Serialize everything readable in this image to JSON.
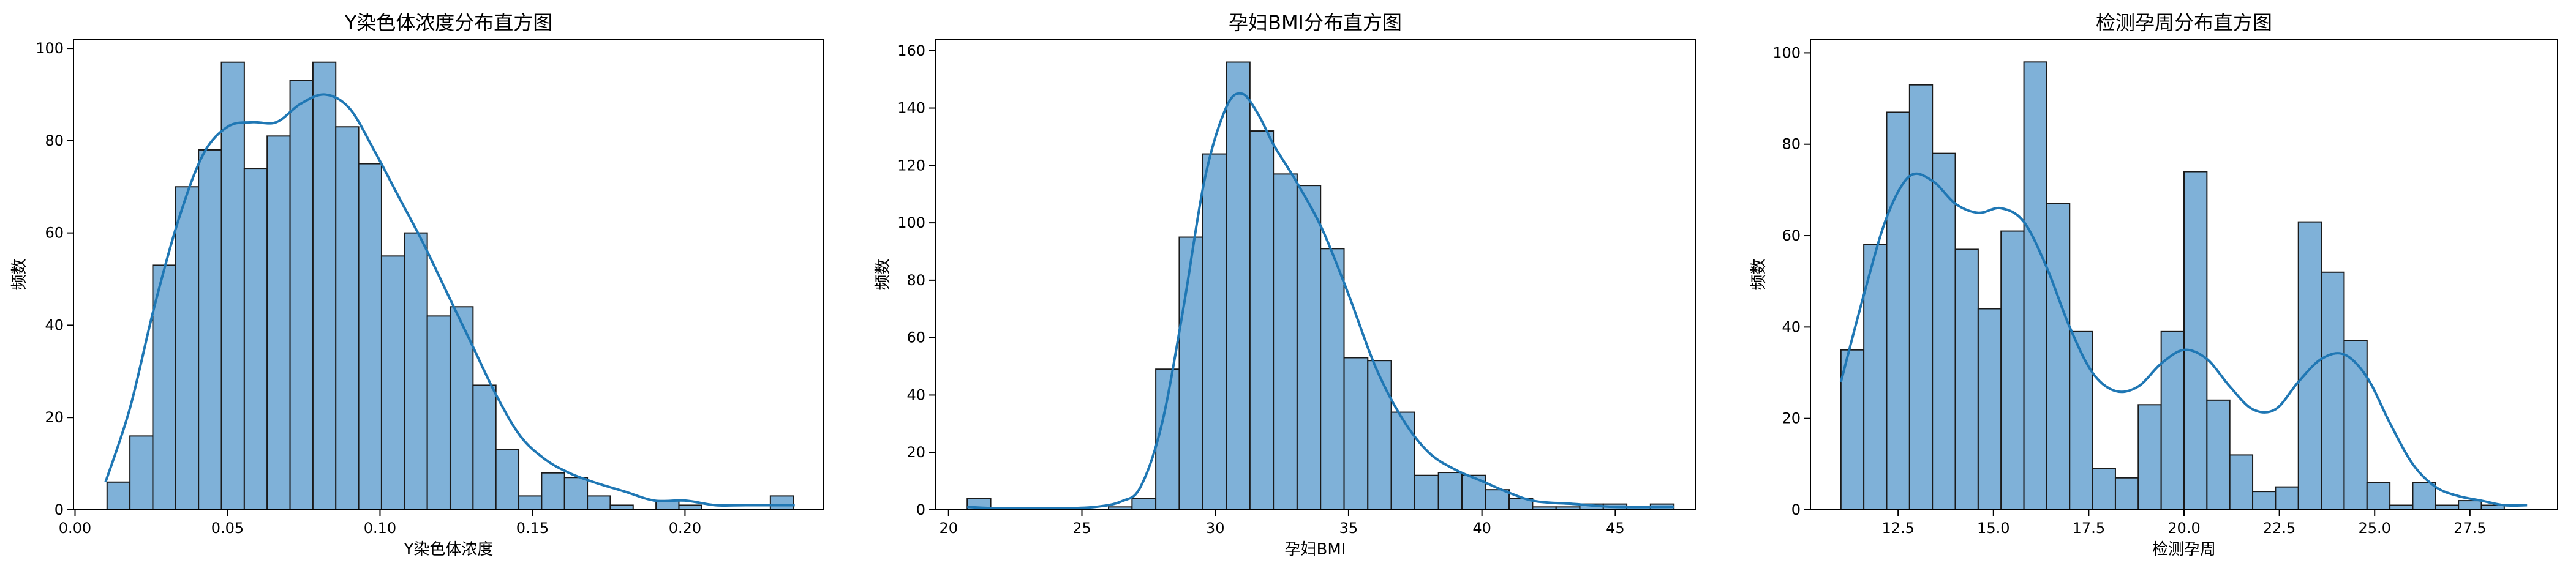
{
  "chart_data": [
    {
      "type": "bar",
      "title": "Y染色体浓度分布直方图",
      "xlabel": "Y染色体浓度",
      "ylabel": "频数",
      "bar_color": "#7fb1d8",
      "edge_color": "#1a1a1a",
      "kde_color": "#1f77b4",
      "xlim": [
        -0.0005,
        0.2455
      ],
      "ylim": [
        0,
        102
      ],
      "xticks": [
        0.0,
        0.05,
        0.1,
        0.15,
        0.2
      ],
      "xtick_labels": [
        "0.00",
        "0.05",
        "0.10",
        "0.15",
        "0.20"
      ],
      "yticks": [
        0,
        20,
        40,
        60,
        80,
        100
      ],
      "ytick_labels": [
        "0",
        "20",
        "40",
        "60",
        "80",
        "100"
      ],
      "bin_edges": [
        0.0105,
        0.018,
        0.0255,
        0.033,
        0.0405,
        0.048,
        0.0555,
        0.063,
        0.0705,
        0.078,
        0.0855,
        0.093,
        0.1005,
        0.108,
        0.1155,
        0.123,
        0.1305,
        0.138,
        0.1455,
        0.153,
        0.1605,
        0.168,
        0.1755,
        0.183,
        0.1905,
        0.198,
        0.2055,
        0.213,
        0.2205,
        0.228,
        0.2355
      ],
      "values": [
        6,
        16,
        53,
        70,
        78,
        97,
        74,
        81,
        93,
        97,
        83,
        75,
        55,
        60,
        42,
        44,
        27,
        13,
        3,
        8,
        7,
        3,
        1,
        0,
        2,
        1,
        0,
        0,
        0,
        3
      ],
      "kde": {
        "x": [
          0.01,
          0.018,
          0.026,
          0.034,
          0.042,
          0.05,
          0.058,
          0.066,
          0.074,
          0.082,
          0.09,
          0.098,
          0.106,
          0.114,
          0.122,
          0.13,
          0.138,
          0.146,
          0.154,
          0.162,
          0.17,
          0.18,
          0.19,
          0.2,
          0.21,
          0.22,
          0.236
        ],
        "y": [
          6,
          22,
          44,
          63,
          77,
          83,
          84,
          84,
          88,
          90,
          87,
          78,
          68,
          58,
          47,
          36,
          25,
          16,
          11,
          8,
          6,
          4,
          2,
          2,
          1,
          1,
          1
        ]
      }
    },
    {
      "type": "bar",
      "title": "孕妇BMI分布直方图",
      "xlabel": "孕妇BMI",
      "ylabel": "频数",
      "bar_color": "#7fb1d8",
      "edge_color": "#1a1a1a",
      "kde_color": "#1f77b4",
      "xlim": [
        19.5,
        48.0
      ],
      "ylim": [
        0,
        164
      ],
      "xticks": [
        20,
        25,
        30,
        35,
        40,
        45
      ],
      "xtick_labels": [
        "20",
        "25",
        "30",
        "35",
        "40",
        "45"
      ],
      "yticks": [
        0,
        20,
        40,
        60,
        80,
        100,
        120,
        140,
        160
      ],
      "ytick_labels": [
        "0",
        "20",
        "40",
        "60",
        "80",
        "100",
        "120",
        "140",
        "160"
      ],
      "bin_edges": [
        20.7,
        21.58,
        22.47,
        23.35,
        24.23,
        25.12,
        26.0,
        26.88,
        27.77,
        28.65,
        29.53,
        30.42,
        31.3,
        32.18,
        33.07,
        33.95,
        34.83,
        35.72,
        36.6,
        37.48,
        38.37,
        39.25,
        40.13,
        41.02,
        41.9,
        42.78,
        43.67,
        44.55,
        45.43,
        46.32,
        47.2
      ],
      "values": [
        4,
        0,
        0,
        0,
        0,
        0,
        1,
        4,
        49,
        95,
        124,
        156,
        132,
        117,
        113,
        91,
        53,
        52,
        34,
        12,
        13,
        12,
        7,
        4,
        1,
        1,
        2,
        2,
        1,
        2
      ],
      "kde": {
        "x": [
          20.7,
          22.0,
          24.0,
          25.5,
          26.5,
          27.2,
          28.0,
          28.8,
          29.6,
          30.4,
          31.0,
          31.6,
          32.2,
          33.0,
          34.0,
          35.0,
          36.0,
          37.0,
          38.0,
          39.0,
          40.0,
          41.0,
          42.0,
          43.5,
          45.0,
          47.2
        ],
        "y": [
          1,
          0.5,
          0.5,
          1,
          3,
          8,
          30,
          70,
          115,
          140,
          145,
          138,
          127,
          115,
          98,
          75,
          50,
          32,
          20,
          14,
          10,
          6,
          3,
          2,
          1,
          1
        ]
      }
    },
    {
      "type": "bar",
      "title": "检测孕周分布直方图",
      "xlabel": "检测孕周",
      "ylabel": "频数",
      "bar_color": "#7fb1d8",
      "edge_color": "#1a1a1a",
      "kde_color": "#1f77b4",
      "xlim": [
        10.2,
        29.8
      ],
      "ylim": [
        0,
        103
      ],
      "xticks": [
        12.5,
        15.0,
        17.5,
        20.0,
        22.5,
        25.0,
        27.5
      ],
      "xtick_labels": [
        "12.5",
        "15.0",
        "17.5",
        "20.0",
        "22.5",
        "25.0",
        "27.5"
      ],
      "yticks": [
        0,
        20,
        40,
        60,
        80,
        100
      ],
      "ytick_labels": [
        "0",
        "20",
        "40",
        "60",
        "80",
        "100"
      ],
      "bin_edges": [
        11.0,
        11.6,
        12.2,
        12.8,
        13.4,
        14.0,
        14.6,
        15.2,
        15.8,
        16.4,
        17.0,
        17.6,
        18.2,
        18.8,
        19.4,
        20.0,
        20.6,
        21.2,
        21.8,
        22.4,
        23.0,
        23.6,
        24.2,
        24.8,
        25.4,
        26.0,
        26.6,
        27.2,
        27.8,
        28.4,
        29.0
      ],
      "values": [
        35,
        58,
        87,
        93,
        78,
        57,
        44,
        61,
        98,
        67,
        39,
        9,
        7,
        23,
        39,
        74,
        24,
        12,
        4,
        5,
        63,
        52,
        37,
        6,
        1,
        6,
        1,
        2,
        1,
        0
      ],
      "kde": {
        "x": [
          11.0,
          11.6,
          12.2,
          12.8,
          13.4,
          14.0,
          14.6,
          15.2,
          15.8,
          16.4,
          17.0,
          17.6,
          18.2,
          18.8,
          19.4,
          20.0,
          20.6,
          21.2,
          21.8,
          22.4,
          23.0,
          23.6,
          24.2,
          24.8,
          25.4,
          26.0,
          26.6,
          27.2,
          27.8,
          28.4,
          29.0
        ],
        "y": [
          28,
          47,
          64,
          73,
          72,
          67,
          65,
          66,
          63,
          53,
          40,
          30,
          26,
          27,
          32,
          35,
          33,
          27,
          22,
          22,
          28,
          33,
          34,
          29,
          19,
          10,
          5,
          3,
          2,
          1,
          1
        ]
      }
    }
  ]
}
